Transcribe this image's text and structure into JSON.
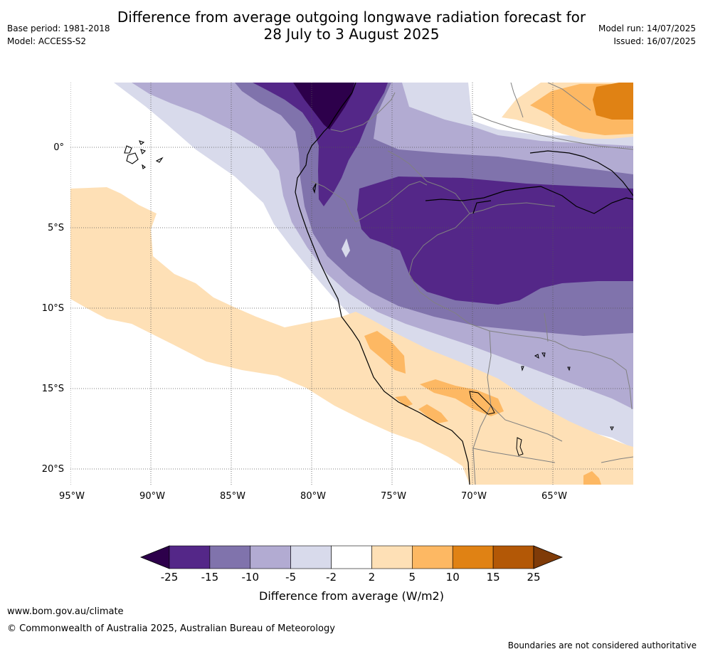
{
  "header": {
    "title_line1": "Difference from average outgoing longwave radiation forecast for",
    "title_line2": "28 July to 3 August 2025",
    "base_period": "Base period: 1981-2018",
    "model": "Model: ACCESS-S2",
    "model_run": "Model run: 14/07/2025",
    "issued": "Issued: 16/07/2025"
  },
  "map": {
    "lat_labels": [
      "0°",
      "5°S",
      "10°S",
      "15°S",
      "20°S"
    ],
    "lon_labels": [
      "95°W",
      "90°W",
      "85°W",
      "80°W",
      "75°W",
      "70°W",
      "65°W"
    ]
  },
  "colorbar": {
    "ticks": [
      "-25",
      "-15",
      "-10",
      "-5",
      "-2",
      "2",
      "5",
      "10",
      "15",
      "25"
    ],
    "colors": [
      "#2d004b",
      "#542788",
      "#8073ac",
      "#b2abd2",
      "#d8daeb",
      "#ffffff",
      "#fee0b6",
      "#fdb863",
      "#e08214",
      "#b35806",
      "#7f3b08"
    ],
    "label": "Difference from average (W/m2)"
  },
  "footer": {
    "website": "www.bom.gov.au/climate",
    "copyright": "© Commonwealth of Australia 2025, Australian Bureau of Meteorology",
    "disclaimer": "Boundaries are not considered authoritative"
  }
}
